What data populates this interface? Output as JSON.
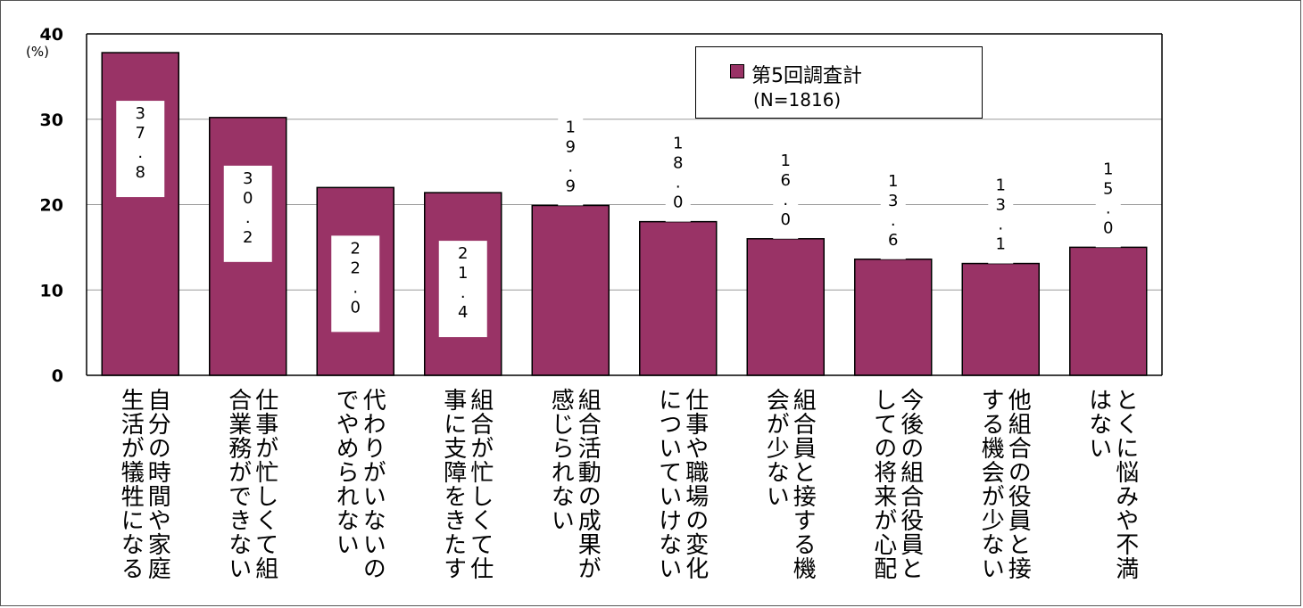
{
  "chart_data": {
    "type": "bar",
    "ylabel": "(%)",
    "ylim": [
      0,
      40
    ],
    "yticks": [
      "0",
      "10",
      "20",
      "30",
      "40"
    ],
    "grid": true,
    "legend_position": "top-right",
    "series": [
      {
        "name": "第5回調査計",
        "color": "#993366",
        "values": [
          37.8,
          30.2,
          22.0,
          21.4,
          19.9,
          18.0,
          16.0,
          13.6,
          13.1,
          15.0
        ],
        "labels": [
          "37.8",
          "30.2",
          "22.0",
          "21.4",
          "19.9",
          "18.0",
          "16.0",
          "13.6",
          "13.1",
          "15.0"
        ]
      }
    ],
    "categories": [
      [
        "自分の時間や家庭",
        "生活が犠牲になる"
      ],
      [
        "仕事が忙しくて組",
        "合業務ができない"
      ],
      [
        "代わりがいないの",
        "でやめられない"
      ],
      [
        "組合が忙しくて仕",
        "事に支障をきたす"
      ],
      [
        "組合活動の成果が",
        "感じられない"
      ],
      [
        "仕事や職場の変化",
        "についていけない"
      ],
      [
        "組合員と接する機",
        "会が少ない"
      ],
      [
        "今後の組合役員と",
        "しての将来が心配"
      ],
      [
        "他組合の役員と接",
        "する機会が少ない"
      ],
      [
        "とくに悩みや不満",
        "はない"
      ]
    ]
  },
  "legend": {
    "name": "第5回調査計",
    "n": "(N=1816)"
  }
}
